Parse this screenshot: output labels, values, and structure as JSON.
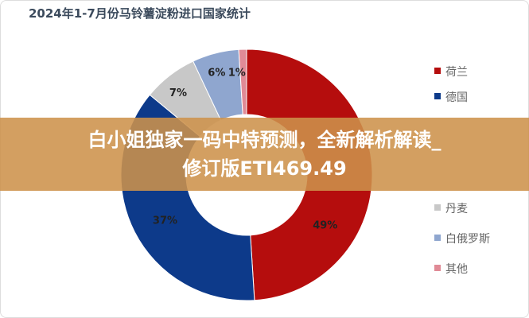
{
  "chart_data": {
    "type": "pie",
    "donut": true,
    "title": "2024年1-7月份马铃薯淀粉进口国家统计",
    "categories": [
      "荷兰",
      "德国",
      "丹麦",
      "白俄罗斯",
      "其他"
    ],
    "values": [
      49,
      37,
      7,
      6,
      1
    ],
    "labels": [
      "49%",
      "37%",
      "7%",
      "6%",
      "1%"
    ],
    "colors": [
      "#b50d0d",
      "#0d3a8a",
      "#c8c8c8",
      "#8fa6cf",
      "#e08a96"
    ],
    "legend": "right"
  },
  "banner": {
    "line1": "白小姐独家一码中特预测，全新解析解读_",
    "line2": "修订版ETI469.49"
  }
}
